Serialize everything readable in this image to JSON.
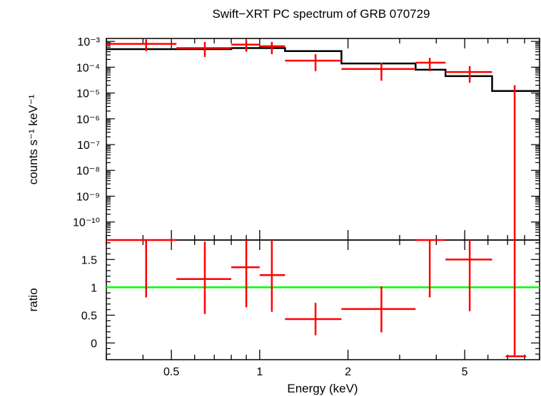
{
  "chart_data": {
    "type": "scatter",
    "title": "Swift−XRT PC spectrum of GRB 070729",
    "xlabel": "Energy (keV)",
    "x_scale": "log",
    "xlim": [
      0.3,
      9.0
    ],
    "x_ticks": [
      {
        "value": 0.5,
        "label": "0.5"
      },
      {
        "value": 1,
        "label": "1"
      },
      {
        "value": 2,
        "label": "2"
      },
      {
        "value": 5,
        "label": "5"
      }
    ],
    "panels": [
      {
        "name": "spectrum",
        "ylabel": "counts s⁻¹ keV⁻¹",
        "y_scale": "log",
        "ylim": [
          2e-11,
          0.0013
        ],
        "y_ticks": [
          {
            "value": 0.001,
            "label": "10⁻³"
          },
          {
            "value": 0.0001,
            "label": "10⁻⁴"
          },
          {
            "value": 1e-05,
            "label": "10⁻⁵"
          },
          {
            "value": 1e-06,
            "label": "10⁻⁶"
          },
          {
            "value": 1e-07,
            "label": "10⁻⁷"
          },
          {
            "value": 1e-08,
            "label": "10⁻⁸"
          },
          {
            "value": 1e-09,
            "label": "10⁻⁹"
          },
          {
            "value": 1e-10,
            "label": "10⁻¹⁰"
          }
        ],
        "data": {
          "color": "#ff0000",
          "points": [
            {
              "x": 0.41,
              "xlo": 0.3,
              "xhi": 0.52,
              "y": 0.0008,
              "ylo": 0.00042,
              "yhi": 0.0012
            },
            {
              "x": 0.65,
              "xlo": 0.52,
              "xhi": 0.8,
              "y": 0.00055,
              "ylo": 0.00025,
              "yhi": 0.00095
            },
            {
              "x": 0.9,
              "xlo": 0.8,
              "xhi": 1.0,
              "y": 0.00075,
              "ylo": 0.0004,
              "yhi": 0.0011
            },
            {
              "x": 1.1,
              "xlo": 1.0,
              "xhi": 1.22,
              "y": 0.00065,
              "ylo": 0.00032,
              "yhi": 0.00095
            },
            {
              "x": 1.55,
              "xlo": 1.22,
              "xhi": 1.9,
              "y": 0.00018,
              "ylo": 7e-05,
              "yhi": 0.00032
            },
            {
              "x": 2.6,
              "xlo": 1.9,
              "xhi": 3.4,
              "y": 8.5e-05,
              "ylo": 3e-05,
              "yhi": 0.00015
            },
            {
              "x": 3.8,
              "xlo": 3.4,
              "xhi": 4.3,
              "y": 0.00015,
              "ylo": 7e-05,
              "yhi": 0.00023
            },
            {
              "x": 5.2,
              "xlo": 4.3,
              "xhi": 6.2,
              "y": 6.5e-05,
              "ylo": 2.5e-05,
              "yhi": 0.00011
            },
            {
              "x": 7.4,
              "xlo": 7.4,
              "xhi": 7.4,
              "y": 2e-05,
              "ylo": 1e-11,
              "yhi": 2e-05
            }
          ]
        },
        "model": {
          "color": "#000000",
          "steps": [
            {
              "x0": 0.3,
              "x1": 0.52,
              "y": 0.0005
            },
            {
              "x0": 0.52,
              "x1": 0.8,
              "y": 0.0005
            },
            {
              "x0": 0.8,
              "x1": 1.0,
              "y": 0.00055
            },
            {
              "x0": 1.0,
              "x1": 1.22,
              "y": 0.00055
            },
            {
              "x0": 1.22,
              "x1": 1.9,
              "y": 0.00042
            },
            {
              "x0": 1.9,
              "x1": 3.4,
              "y": 0.00014
            },
            {
              "x0": 3.4,
              "x1": 4.3,
              "y": 8e-05
            },
            {
              "x0": 4.3,
              "x1": 6.2,
              "y": 4.5e-05
            },
            {
              "x0": 6.2,
              "x1": 9.0,
              "y": 1.2e-05
            }
          ]
        }
      },
      {
        "name": "ratio",
        "ylabel": "ratio",
        "y_scale": "linear",
        "ylim": [
          -0.3,
          1.85
        ],
        "y_ticks": [
          {
            "value": 0,
            "label": "0"
          },
          {
            "value": 0.5,
            "label": "0.5"
          },
          {
            "value": 1,
            "label": "1"
          },
          {
            "value": 1.5,
            "label": "1.5"
          }
        ],
        "reference_line": {
          "y": 1,
          "color": "#00ff00"
        },
        "data": {
          "color": "#ff0000",
          "points": [
            {
              "x": 0.41,
              "xlo": 0.3,
              "xhi": 0.52,
              "y": 1.85,
              "ylo": 0.82,
              "yhi": 1.85
            },
            {
              "x": 0.65,
              "xlo": 0.52,
              "xhi": 0.8,
              "y": 1.15,
              "ylo": 0.52,
              "yhi": 1.82
            },
            {
              "x": 0.9,
              "xlo": 0.8,
              "xhi": 1.0,
              "y": 1.36,
              "ylo": 0.64,
              "yhi": 1.85
            },
            {
              "x": 1.1,
              "xlo": 1.0,
              "xhi": 1.22,
              "y": 1.22,
              "ylo": 0.56,
              "yhi": 1.85
            },
            {
              "x": 1.55,
              "xlo": 1.22,
              "xhi": 1.9,
              "y": 0.43,
              "ylo": 0.14,
              "yhi": 0.72
            },
            {
              "x": 2.6,
              "xlo": 1.9,
              "xhi": 3.4,
              "y": 0.61,
              "ylo": 0.19,
              "yhi": 1.02
            },
            {
              "x": 3.8,
              "xlo": 3.4,
              "xhi": 4.3,
              "y": 1.85,
              "ylo": 0.82,
              "yhi": 1.85
            },
            {
              "x": 5.2,
              "xlo": 4.3,
              "xhi": 6.2,
              "y": 1.5,
              "ylo": 0.57,
              "yhi": 1.85
            },
            {
              "x": 7.4,
              "xlo": 6.9,
              "xhi": 8.1,
              "y": -0.24,
              "ylo": -0.24,
              "yhi": 1.85
            }
          ]
        }
      }
    ]
  }
}
